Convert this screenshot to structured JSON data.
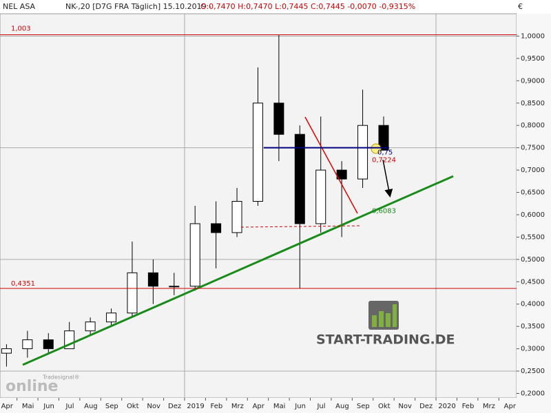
{
  "header": {
    "symbol": "NEL ASA",
    "info": "NK-,20 [D7G FRA  Täglich] 15.10.2019 -",
    "quote": "O:0,7470 H:0,7470 L:0,7445 C:0,7445 -0,0070 -0,9315%",
    "currency": "€"
  },
  "watermark": {
    "brand": "START-TRADING.DE",
    "logo_small": "Tradesignal®",
    "logo_big": "online"
  },
  "chart_data": {
    "type": "candlestick",
    "categories": [
      "Apr",
      "Mai",
      "Jun",
      "Jul",
      "Aug",
      "Sep",
      "Okt",
      "Nov",
      "Dez",
      "2019",
      "Feb",
      "Mrz",
      "Apr",
      "Mai",
      "Jun",
      "Jul",
      "Aug",
      "Sep",
      "Okt",
      "Nov",
      "Dez",
      "2020",
      "Feb",
      "Mrz",
      "Apr"
    ],
    "open": [
      0.29,
      0.3,
      0.32,
      0.3,
      0.34,
      0.36,
      0.38,
      0.47,
      0.44,
      0.44,
      0.58,
      0.56,
      0.63,
      0.85,
      0.78,
      0.58,
      0.7,
      0.68,
      0.8,
      null,
      null,
      null,
      null,
      null,
      null
    ],
    "high": [
      0.31,
      0.34,
      0.335,
      0.36,
      0.37,
      0.39,
      0.54,
      0.5,
      0.47,
      0.62,
      0.63,
      0.66,
      0.93,
      1.003,
      0.8,
      0.82,
      0.72,
      0.88,
      0.82,
      null,
      null,
      null,
      null,
      null,
      null
    ],
    "low": [
      0.26,
      0.28,
      0.29,
      0.3,
      0.33,
      0.35,
      0.37,
      0.4,
      0.42,
      0.43,
      0.48,
      0.55,
      0.62,
      0.72,
      0.4351,
      0.56,
      0.55,
      0.66,
      0.7445,
      null,
      null,
      null,
      null,
      null,
      null
    ],
    "close": [
      0.3,
      0.32,
      0.3,
      0.34,
      0.36,
      0.38,
      0.47,
      0.44,
      0.44,
      0.58,
      0.56,
      0.63,
      0.85,
      0.78,
      0.58,
      0.7,
      0.68,
      0.8,
      0.7445,
      null,
      null,
      null,
      null,
      null,
      null
    ],
    "up_color": "#ffffff",
    "down_color": "#000000",
    "ylim": [
      0.19,
      1.05
    ],
    "yticks": [
      {
        "value": 0.2,
        "label": "0,2000"
      },
      {
        "value": 0.25,
        "label": "0,2500"
      },
      {
        "value": 0.3,
        "label": "0,3000"
      },
      {
        "value": 0.35,
        "label": "0,3500"
      },
      {
        "value": 0.4,
        "label": "0,4000"
      },
      {
        "value": 0.45,
        "label": "0,4500"
      },
      {
        "value": 0.5,
        "label": "0,5000"
      },
      {
        "value": 0.55,
        "label": "0,5500"
      },
      {
        "value": 0.6,
        "label": "0,6000"
      },
      {
        "value": 0.65,
        "label": "0,6500"
      },
      {
        "value": 0.7,
        "label": "0,7000"
      },
      {
        "value": 0.75,
        "label": "0,7500"
      },
      {
        "value": 0.8,
        "label": "0,8000"
      },
      {
        "value": 0.85,
        "label": "0,8500"
      },
      {
        "value": 0.9,
        "label": "0,9000"
      },
      {
        "value": 0.95,
        "label": "0,9500"
      },
      {
        "value": 1.0,
        "label": "1,0000"
      }
    ],
    "grid": true,
    "levels": [
      {
        "value": 1.003,
        "label": "1,003",
        "color": "#cc0000"
      },
      {
        "value": 0.4351,
        "label": "0,4351",
        "color": "#cc0000"
      },
      {
        "value": 0.75,
        "label": "0,75",
        "color": "#000080"
      }
    ],
    "annotations": [
      {
        "value": 0.7224,
        "label": "0,7224",
        "color": "#cc0000"
      },
      {
        "value": 0.6083,
        "label": "0,6083",
        "color": "#1a8a1a"
      }
    ]
  }
}
